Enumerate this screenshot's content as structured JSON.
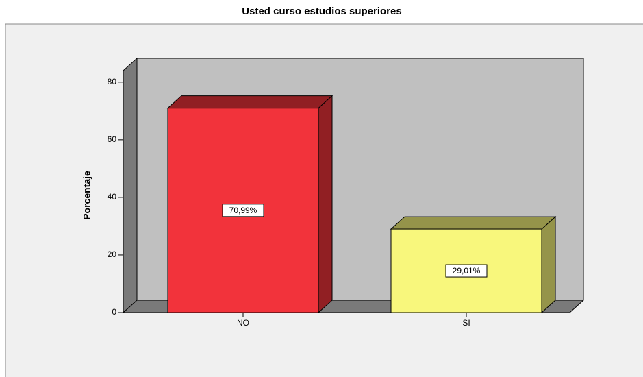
{
  "chart_data": {
    "type": "bar3d",
    "title": "Usted  curso estudios superiores",
    "ylabel": "Porcentaje",
    "categories": [
      "NO",
      "SI"
    ],
    "values": [
      70.99,
      29.01
    ],
    "value_labels": [
      "70,99%",
      "29,01%"
    ],
    "colors": [
      "#f2333b",
      "#f8f77c"
    ],
    "ylim": [
      0,
      84
    ],
    "yticks": [
      0,
      20,
      40,
      60,
      80
    ]
  }
}
